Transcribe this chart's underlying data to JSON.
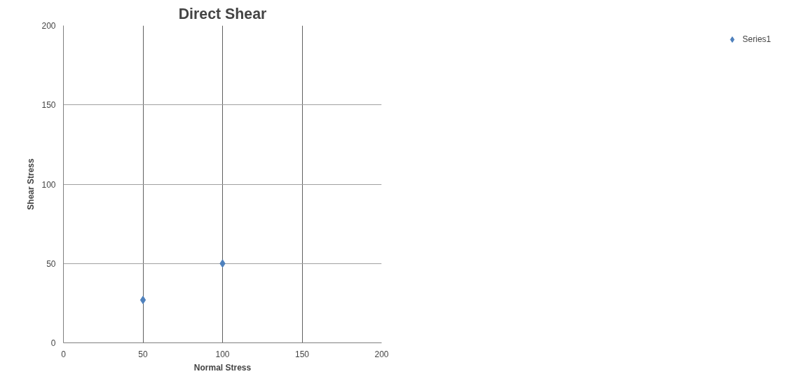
{
  "chart_data": {
    "type": "scatter",
    "title": "Direct Shear",
    "xlabel": "Normal Stress",
    "ylabel": "Shear Stress",
    "x": [
      50,
      100
    ],
    "series": [
      {
        "name": "Series1",
        "color": "#4f81bd",
        "values": [
          27,
          50
        ]
      }
    ],
    "xlim": [
      0,
      200
    ],
    "xticks": [
      0,
      50,
      100,
      150,
      200
    ],
    "ylim": [
      0,
      200
    ],
    "yticks": [
      0,
      50,
      100,
      150,
      200
    ],
    "grid": true,
    "legend": "right",
    "marker": "diamond"
  }
}
